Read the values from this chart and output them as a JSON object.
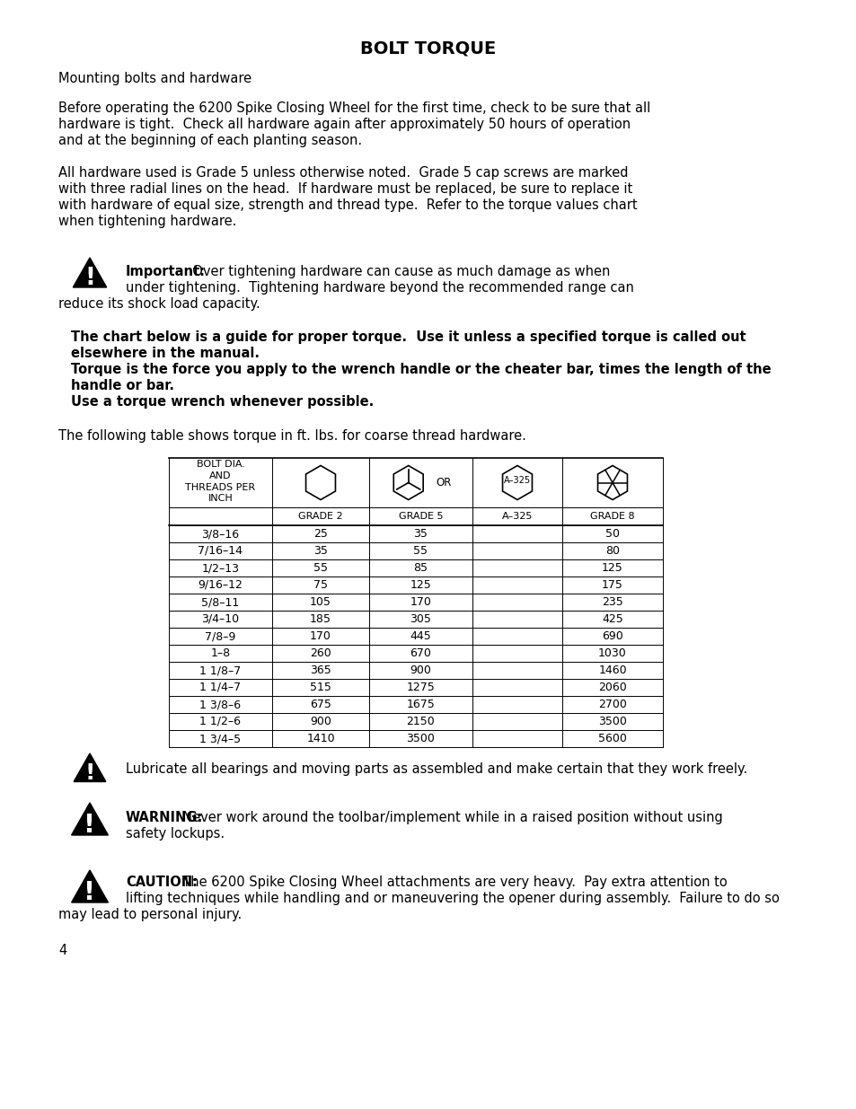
{
  "title": "BOLT TORQUE",
  "page_number": "4",
  "bg_color": "#ffffff",
  "text_color": "#000000",
  "p1": "Mounting bolts and hardware",
  "p2_lines": [
    "Before operating the 6200 Spike Closing Wheel for the first time, check to be sure that all",
    "hardware is tight.  Check all hardware again after approximately 50 hours of operation",
    "and at the beginning of each planting season."
  ],
  "p3_lines": [
    "All hardware used is Grade 5 unless otherwise noted.  Grade 5 cap screws are marked",
    "with three radial lines on the head.  If hardware must be replaced, be sure to replace it",
    "with hardware of equal size, strength and thread type.  Refer to the torque values chart",
    "when tightening hardware."
  ],
  "imp_line1_bold": "Important:",
  "imp_line1_rest": "  Over tightening hardware can cause as much damage as when",
  "imp_line2": "under tightening.  Tightening hardware beyond the recommended range can",
  "imp_line3": "reduce its shock load capacity.",
  "bold_lines": [
    "The chart below is a guide for proper torque.  Use it unless a specified torque is called out",
    "elsewhere in the manual.",
    "Torque is the force you apply to the wrench handle or the cheater bar, times the length of the",
    "handle or bar.",
    "Use a torque wrench whenever possible."
  ],
  "table_intro": "The following table shows torque in ft. lbs. for coarse thread hardware.",
  "table_rows": [
    [
      "3/8–16",
      "25",
      "35",
      "",
      "50"
    ],
    [
      "7/16–14",
      "35",
      "55",
      "",
      "80"
    ],
    [
      "1/2–13",
      "55",
      "85",
      "",
      "125"
    ],
    [
      "9/16–12",
      "75",
      "125",
      "",
      "175"
    ],
    [
      "5/8–11",
      "105",
      "170",
      "",
      "235"
    ],
    [
      "3/4–10",
      "185",
      "305",
      "",
      "425"
    ],
    [
      "7/8–9",
      "170",
      "445",
      "",
      "690"
    ],
    [
      "1–8",
      "260",
      "670",
      "",
      "1030"
    ],
    [
      "1 1/8–7",
      "365",
      "900",
      "",
      "1460"
    ],
    [
      "1 1/4–7",
      "515",
      "1275",
      "",
      "2060"
    ],
    [
      "1 3/8–6",
      "675",
      "1675",
      "",
      "2700"
    ],
    [
      "1 1/2–6",
      "900",
      "2150",
      "",
      "3500"
    ],
    [
      "1 3/4–5",
      "1410",
      "3500",
      "",
      "5600"
    ]
  ],
  "lube_text": "Lubricate all bearings and moving parts as assembled and make certain that they work freely.",
  "warn_bold": "WARNING:",
  "warn_rest": "  Never work around the toolbar/implement while in a raised position without using",
  "warn_line2": "safety lockups.",
  "caut_bold": "CAUTION:",
  "caut_rest": "  The 6200 Spike Closing Wheel attachments are very heavy.  Pay extra attention to",
  "caut_line2": "lifting techniques while handling and or maneuvering the opener during assembly.  Failure to do so",
  "caut_line3": "may lead to personal injury."
}
